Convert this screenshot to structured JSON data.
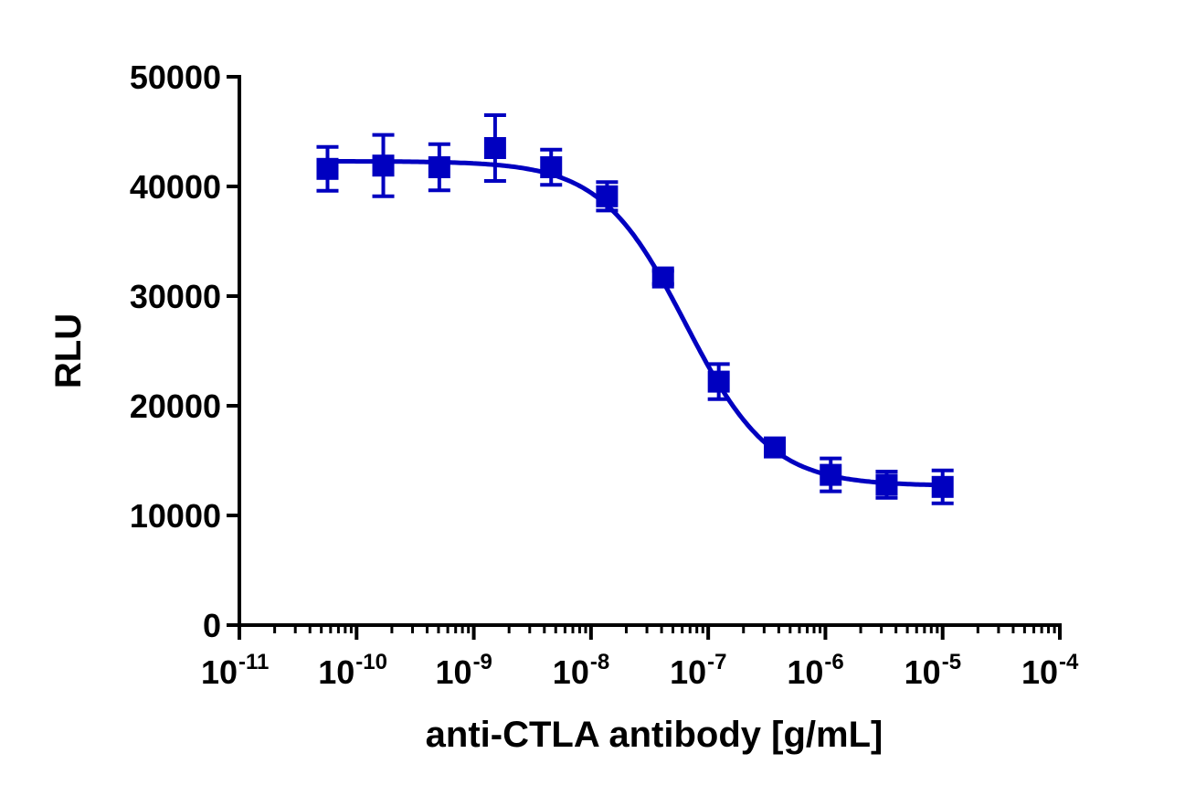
{
  "chart_data": {
    "type": "scatter",
    "title": "",
    "xlabel": "anti-CTLA antibody [g/mL]",
    "ylabel": "RLU",
    "x_scale": "log",
    "xlim": [
      1e-11,
      0.0001
    ],
    "ylim": [
      0,
      50000
    ],
    "grid": false,
    "legend": "none",
    "color": "#0000C0",
    "marker": "square",
    "x_ticks": [
      {
        "base": "10",
        "exp": "-11"
      },
      {
        "base": "10",
        "exp": "-10"
      },
      {
        "base": "10",
        "exp": "-9"
      },
      {
        "base": "10",
        "exp": "-8"
      },
      {
        "base": "10",
        "exp": "-7"
      },
      {
        "base": "10",
        "exp": "-6"
      },
      {
        "base": "10",
        "exp": "-5"
      },
      {
        "base": "10",
        "exp": "-4"
      }
    ],
    "y_ticks": [
      "0",
      "10000",
      "20000",
      "30000",
      "40000",
      "50000"
    ],
    "series": [
      {
        "x": [
          5.65e-11,
          1.69e-10,
          5.08e-10,
          1.52e-09,
          4.57e-09,
          1.37e-08,
          4.12e-08,
          1.23e-07,
          3.7e-07,
          1.11e-06,
          3.33e-06,
          1e-05
        ],
        "y": [
          41600,
          41900,
          41750,
          43500,
          41750,
          39100,
          31700,
          22200,
          16200,
          13700,
          12800,
          12600
        ],
        "error": [
          2000,
          2800,
          2100,
          3000,
          1600,
          1300,
          600,
          1600,
          500,
          1500,
          1200,
          1500
        ]
      }
    ],
    "fit": {
      "model": "4PL",
      "top": 42300,
      "bottom": 12700,
      "ec50": 6.4e-08,
      "hill": -1.2
    }
  }
}
